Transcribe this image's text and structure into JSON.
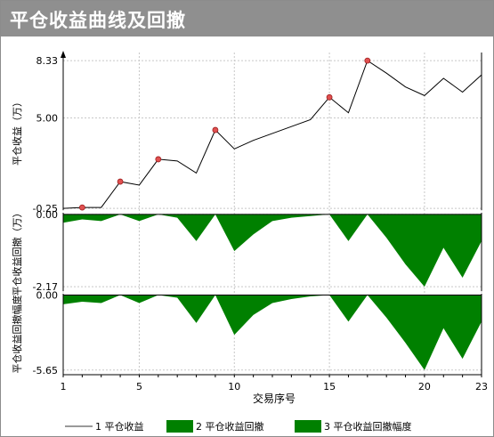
{
  "window": {
    "title": "平仓收益曲线及回撤"
  },
  "chart_data": {
    "type": "line",
    "xlabel": "交易序号",
    "x": [
      1,
      2,
      3,
      4,
      5,
      6,
      7,
      8,
      9,
      10,
      11,
      12,
      13,
      14,
      15,
      16,
      17,
      18,
      19,
      20,
      21,
      22,
      23
    ],
    "x_ticks": [
      1,
      5,
      10,
      15,
      20,
      23
    ],
    "x_tick_labels": [
      "1",
      "5",
      "10",
      "15",
      "20",
      "23"
    ],
    "grid": true,
    "colors": {
      "line": "#000000",
      "marker": "#e05050",
      "area": "#008000"
    },
    "panels": [
      {
        "name": "平仓收益",
        "ylabel": "平仓收益（万）",
        "ylim": [
          -0.35,
          8.8
        ],
        "y_ticks": [
          -0.25,
          5.0,
          8.33
        ],
        "y_tick_labels": [
          "-0.25",
          "5.00",
          "8.33"
        ],
        "series": [
          {
            "name": "平仓收益",
            "legend_label": "1 平仓收益",
            "style": "line",
            "values": [
              -0.25,
              -0.2,
              -0.2,
              1.3,
              1.1,
              2.6,
              2.5,
              1.8,
              4.3,
              3.2,
              3.7,
              4.1,
              4.5,
              4.9,
              6.2,
              5.3,
              8.33,
              7.6,
              6.8,
              6.3,
              7.3,
              6.5,
              7.5
            ],
            "markers": [
              {
                "x": 2,
                "y": -0.2
              },
              {
                "x": 4,
                "y": 1.3
              },
              {
                "x": 6,
                "y": 2.6
              },
              {
                "x": 9,
                "y": 4.3
              },
              {
                "x": 15,
                "y": 6.2
              },
              {
                "x": 17,
                "y": 8.33
              }
            ]
          }
        ]
      },
      {
        "name": "平仓收益回撤",
        "ylabel": "平仓收益回撤（万）",
        "ylim": [
          -2.3,
          0.05
        ],
        "y_ticks": [
          0.0,
          -2.17
        ],
        "y_tick_labels": [
          "0.00",
          "-2.17"
        ],
        "series": [
          {
            "name": "平仓收益回撤",
            "legend_label": "2 平仓收益回撤",
            "style": "area",
            "values": [
              -0.25,
              -0.15,
              -0.2,
              0.0,
              -0.2,
              0.0,
              -0.1,
              -0.8,
              0.0,
              -1.1,
              -0.6,
              -0.2,
              -0.1,
              -0.05,
              0.0,
              -0.8,
              0.0,
              -0.7,
              -1.5,
              -2.17,
              -1.0,
              -1.9,
              -0.8
            ]
          }
        ]
      },
      {
        "name": "平仓收益回撤幅度",
        "ylabel": "平仓收益回撤幅度",
        "ylim": [
          -6.0,
          0.1
        ],
        "y_ticks": [
          0.0,
          -5.65
        ],
        "y_tick_labels": [
          "0.00",
          "-5.65"
        ],
        "series": [
          {
            "name": "平仓收益回撤幅度",
            "legend_label": "3 平仓收益回撤幅度",
            "style": "area",
            "values": [
              -0.7,
              -0.5,
              -0.6,
              0.0,
              -0.6,
              0.0,
              -0.2,
              -2.1,
              0.0,
              -3.0,
              -1.5,
              -0.6,
              -0.3,
              -0.1,
              0.0,
              -2.0,
              0.0,
              -1.7,
              -3.6,
              -5.65,
              -2.5,
              -4.8,
              -2.0
            ]
          }
        ]
      }
    ]
  }
}
